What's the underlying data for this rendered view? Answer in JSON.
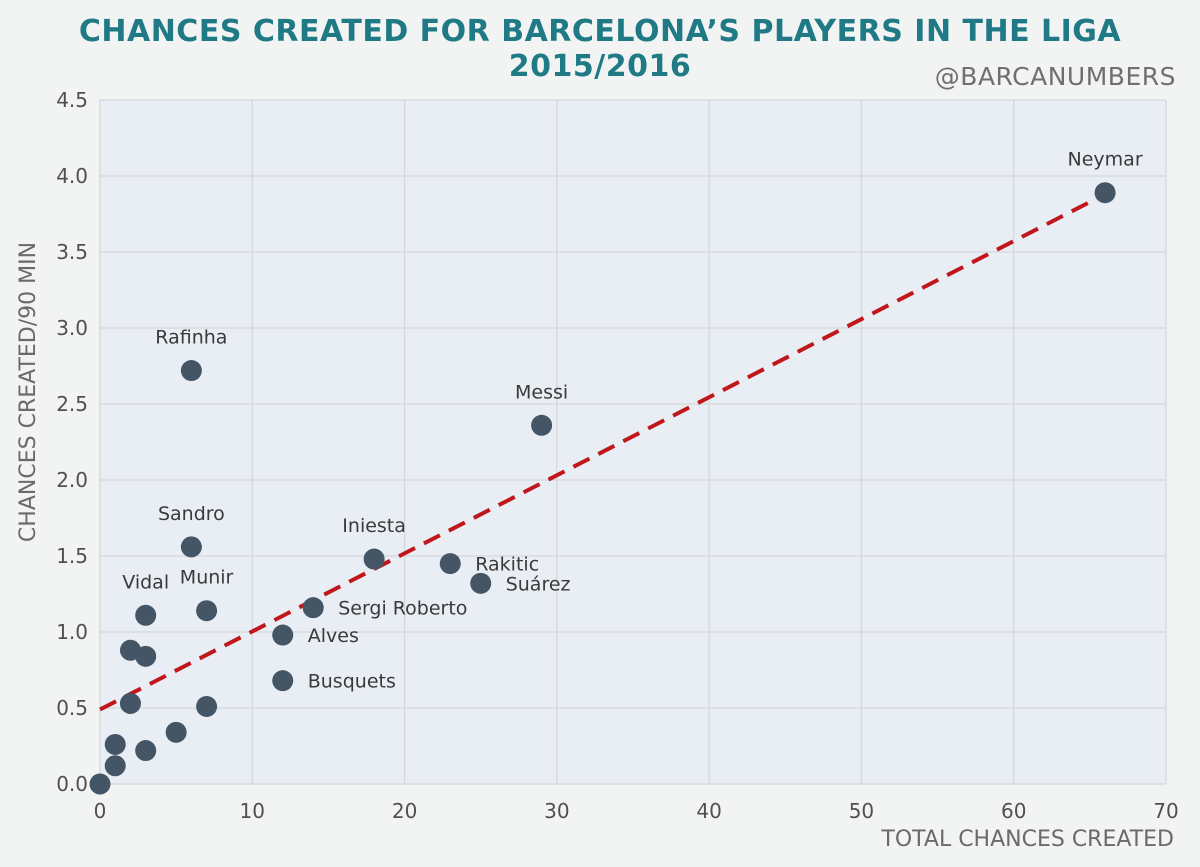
{
  "header": {
    "title": "CHANCES CREATED FOR BARCELONA’S PLAYERS IN THE LIGA 2015/2016",
    "handle": "@BARCANUMBERS"
  },
  "colors": {
    "background": "#f2f3f3",
    "plot_area": "#e8eef4",
    "grid": "#d4d8dc",
    "title": "#1f7a85",
    "point": "#445566",
    "trendline": "#c0171c"
  },
  "chart_data": {
    "type": "scatter",
    "title": "CHANCES CREATED FOR BARCELONA’S PLAYERS IN THE LIGA 2015/2016",
    "xlabel": "TOTAL CHANCES CREATED",
    "ylabel": "CHANCES CREATED/90 MIN",
    "xlim": [
      0,
      70
    ],
    "ylim": [
      0,
      4.5
    ],
    "x_ticks": [
      "0",
      "10",
      "20",
      "30",
      "40",
      "50",
      "60",
      "70"
    ],
    "y_ticks": [
      "0.0",
      "0.5",
      "1.0",
      "1.5",
      "2.0",
      "2.5",
      "3.0",
      "3.5",
      "4.0",
      "4.5"
    ],
    "grid": true,
    "points": [
      {
        "name": "Neymar",
        "x": 66,
        "y": 3.89,
        "label_pos": "above"
      },
      {
        "name": "Messi",
        "x": 29,
        "y": 2.36,
        "label_pos": "above"
      },
      {
        "name": "Rafinha",
        "x": 6,
        "y": 2.72,
        "label_pos": "above"
      },
      {
        "name": "Sandro",
        "x": 6,
        "y": 1.56,
        "label_pos": "above"
      },
      {
        "name": "Iniesta",
        "x": 18,
        "y": 1.48,
        "label_pos": "above"
      },
      {
        "name": "Rakitic",
        "x": 23,
        "y": 1.45,
        "label_pos": "right"
      },
      {
        "name": "Suárez",
        "x": 25,
        "y": 1.32,
        "label_pos": "right"
      },
      {
        "name": "Vidal",
        "x": 3,
        "y": 1.11,
        "label_pos": "above"
      },
      {
        "name": "Munir",
        "x": 7,
        "y": 1.14,
        "label_pos": "above"
      },
      {
        "name": "Sergi Roberto",
        "x": 14,
        "y": 1.16,
        "label_pos": "right"
      },
      {
        "name": "Alves",
        "x": 12,
        "y": 0.98,
        "label_pos": "right"
      },
      {
        "name": "Busquets",
        "x": 12,
        "y": 0.68,
        "label_pos": "right"
      },
      {
        "name": "",
        "x": 2,
        "y": 0.88
      },
      {
        "name": "",
        "x": 3,
        "y": 0.84
      },
      {
        "name": "",
        "x": 2,
        "y": 0.53
      },
      {
        "name": "",
        "x": 7,
        "y": 0.51
      },
      {
        "name": "",
        "x": 5,
        "y": 0.34
      },
      {
        "name": "",
        "x": 1,
        "y": 0.26
      },
      {
        "name": "",
        "x": 3,
        "y": 0.22
      },
      {
        "name": "",
        "x": 1,
        "y": 0.12
      },
      {
        "name": "",
        "x": 0,
        "y": 0.0
      }
    ],
    "trendline": {
      "style": "dashed",
      "x": [
        0,
        66
      ],
      "y": [
        0.49,
        3.88
      ]
    }
  }
}
